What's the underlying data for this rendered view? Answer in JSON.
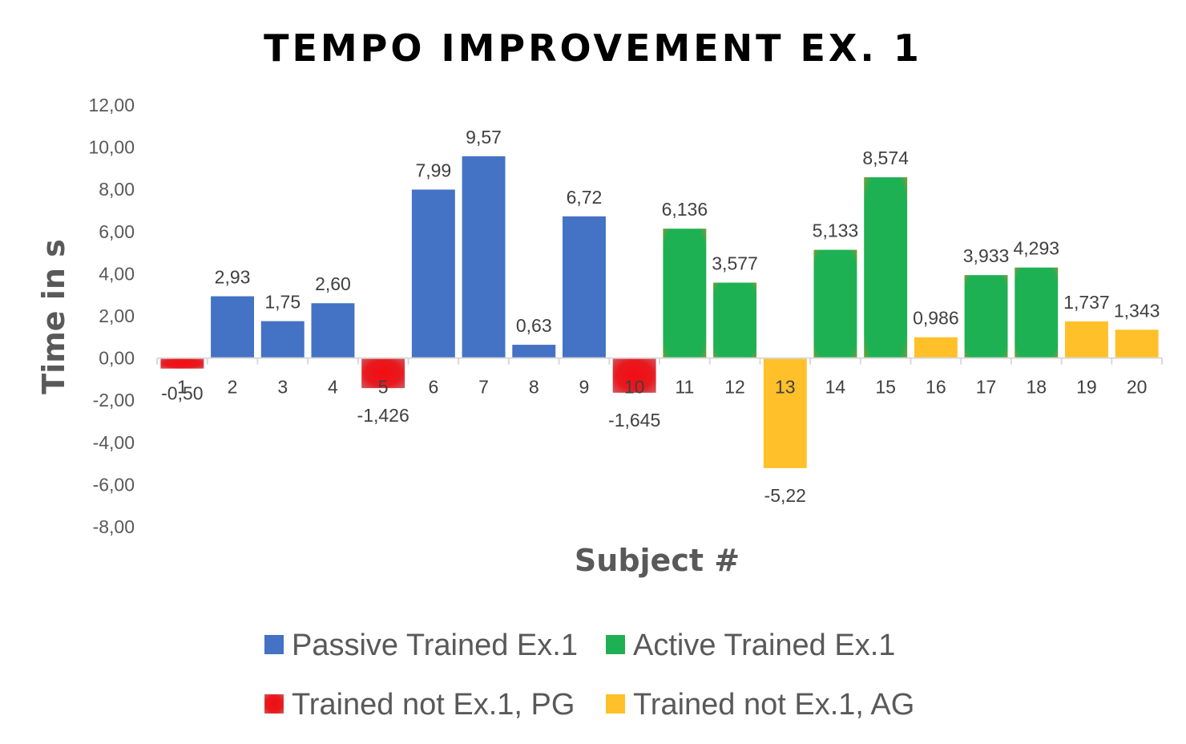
{
  "chart_data": {
    "type": "bar",
    "title": "TEMPO IMPROVEMENT EX. 1",
    "xlabel": "Subject #",
    "ylabel": "Time in s",
    "ylim": [
      -8,
      12
    ],
    "ytick_labels": [
      "12,00",
      "10,00",
      "8,00",
      "6,00",
      "4,00",
      "2,00",
      "0,00",
      "-2,00",
      "-4,00",
      "-6,00",
      "-8,00"
    ],
    "categories": [
      "1",
      "2",
      "3",
      "4",
      "5",
      "6",
      "7",
      "8",
      "9",
      "10",
      "11",
      "12",
      "13",
      "14",
      "15",
      "16",
      "17",
      "18",
      "19",
      "20"
    ],
    "values": [
      -0.5,
      2.93,
      1.75,
      2.6,
      -1.426,
      7.99,
      9.57,
      0.63,
      6.72,
      -1.645,
      6.136,
      3.577,
      -5.22,
      5.133,
      8.574,
      0.986,
      3.933,
      4.293,
      1.737,
      1.343
    ],
    "value_labels": [
      "-0,50",
      "2,93",
      "1,75",
      "2,60",
      "-1,426",
      "7,99",
      "9,57",
      "0,63",
      "6,72",
      "-1,645",
      "6,136",
      "3,577",
      "-5,22",
      "5,133",
      "8,574",
      "0,986",
      "3,933",
      "4,293",
      "1,737",
      "1,343"
    ],
    "groups": [
      2,
      0,
      0,
      0,
      2,
      0,
      0,
      0,
      0,
      2,
      1,
      1,
      3,
      1,
      1,
      3,
      1,
      1,
      3,
      3
    ],
    "series": [
      {
        "name": "Passive Trained Ex.1",
        "color": "#4472C4"
      },
      {
        "name": "Active Trained Ex.1",
        "color": "#1DB153"
      },
      {
        "name": "Trained not Ex.1, PG",
        "color": "#E8191E"
      },
      {
        "name": "Trained not Ex.1, AG",
        "color": "#FFC02A"
      }
    ],
    "legend_position": "bottom",
    "grid": false
  }
}
